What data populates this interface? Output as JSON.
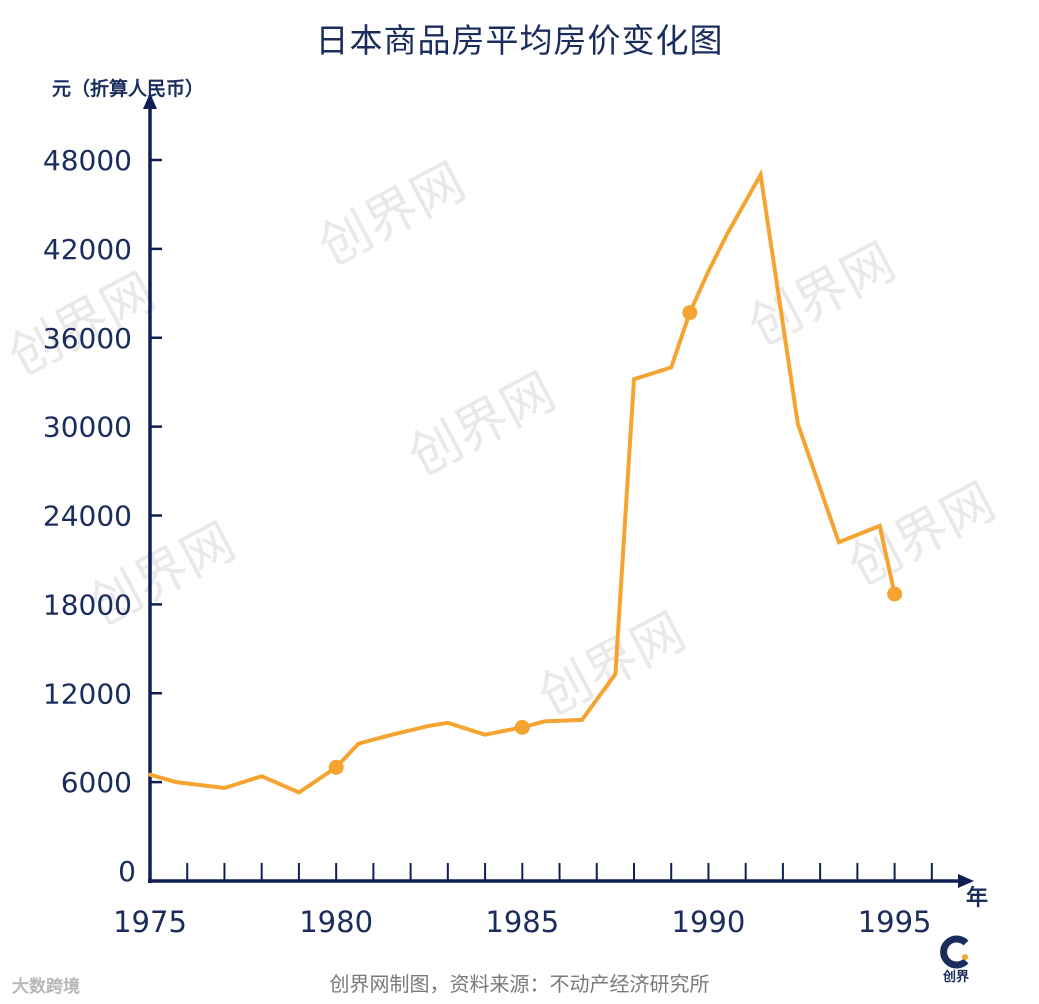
{
  "watermark_text": "创界网",
  "source_note": "创界网制图，资料来源：不动产经济研究所",
  "corner_brand": "大数跨境",
  "logo": {
    "glyph": "C",
    "text": "创界"
  },
  "colors": {
    "axis": "#0f1f55",
    "text": "#1b2d5c",
    "line": "#f6a431",
    "watermark": "#e9e9e9"
  },
  "chart_data": {
    "type": "line",
    "title": "日本商品房平均房价变化图",
    "ylabel": "元（折算人民币）",
    "xlabel": "年",
    "xlim": [
      1975,
      1996.3
    ],
    "ylim": [
      0,
      50000
    ],
    "yticks": [
      0,
      6000,
      12000,
      18000,
      24000,
      30000,
      36000,
      42000,
      48000
    ],
    "xtick_labels": [
      1975,
      1980,
      1985,
      1990,
      1995
    ],
    "grid": false,
    "series": [
      {
        "x": [
          1975,
          1975.7,
          1977,
          1978,
          1979,
          1980,
          1980.6,
          1981.5,
          1982.5,
          1983,
          1984,
          1985,
          1985.6,
          1986.6,
          1987.5,
          1988,
          1989,
          1989.5,
          1990,
          1990.5,
          1991.4,
          1992.4,
          1993.5,
          1994.6,
          1995
        ],
        "y": [
          6500,
          6000,
          5600,
          6400,
          5300,
          7000,
          8600,
          9200,
          9800,
          10000,
          9200,
          9700,
          10100,
          10200,
          13300,
          33200,
          34000,
          37700,
          40500,
          43000,
          47000,
          30200,
          22200,
          23300,
          18700
        ]
      }
    ],
    "highlight_points": [
      {
        "x": 1980,
        "y": 7000
      },
      {
        "x": 1985,
        "y": 9700
      },
      {
        "x": 1989.5,
        "y": 37700
      },
      {
        "x": 1995,
        "y": 18700
      }
    ]
  }
}
